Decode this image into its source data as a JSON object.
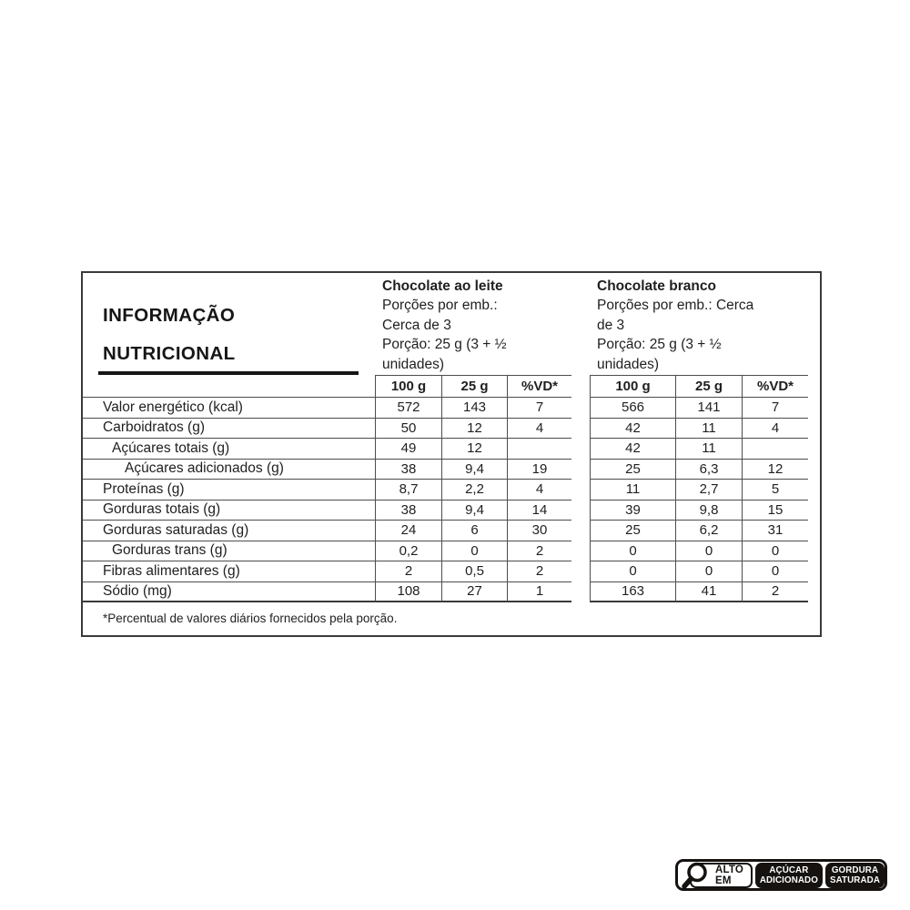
{
  "nutrition_table": {
    "title": "INFORMAÇÃO\nNUTRICIONAL",
    "footnote": "*Percentual de valores diários fornecidos pela porção.",
    "groups": [
      {
        "name": "Chocolate ao leite",
        "serving_info": "Porções por emb.:\nCerca de 3\nPorção: 25 g (3 + ½\nunidades)",
        "columns": [
          "100 g",
          "25 g",
          "%VD*"
        ]
      },
      {
        "name": "Chocolate branco",
        "serving_info": "Porções por emb.: Cerca\nde 3\nPorção: 25 g (3 + ½\nunidades)",
        "columns": [
          "100 g",
          "25 g",
          "%VD*"
        ]
      }
    ],
    "rows": [
      {
        "label": "Valor energético (kcal)",
        "indent": 0,
        "g1": [
          "572",
          "143",
          "7"
        ],
        "g2": [
          "566",
          "141",
          "7"
        ]
      },
      {
        "label": "Carboidratos (g)",
        "indent": 0,
        "g1": [
          "50",
          "12",
          "4"
        ],
        "g2": [
          "42",
          "11",
          "4"
        ]
      },
      {
        "label": "Açúcares totais (g)",
        "indent": 1,
        "g1": [
          "49",
          "12",
          ""
        ],
        "g2": [
          "42",
          "11",
          ""
        ]
      },
      {
        "label": "Açúcares adicionados (g)",
        "indent": 2,
        "g1": [
          "38",
          "9,4",
          "19"
        ],
        "g2": [
          "25",
          "6,3",
          "12"
        ]
      },
      {
        "label": "Proteínas (g)",
        "indent": 0,
        "g1": [
          "8,7",
          "2,2",
          "4"
        ],
        "g2": [
          "11",
          "2,7",
          "5"
        ]
      },
      {
        "label": "Gorduras totais (g)",
        "indent": 0,
        "g1": [
          "38",
          "9,4",
          "14"
        ],
        "g2": [
          "39",
          "9,8",
          "15"
        ]
      },
      {
        "label": "Gorduras saturadas (g)",
        "indent": 0,
        "g1": [
          "24",
          "6",
          "30"
        ],
        "g2": [
          "25",
          "6,2",
          "31"
        ]
      },
      {
        "label": "Gorduras trans (g)",
        "indent": 1,
        "g1": [
          "0,2",
          "0",
          "2"
        ],
        "g2": [
          "0",
          "0",
          "0"
        ]
      },
      {
        "label": "Fibras alimentares (g)",
        "indent": 0,
        "g1": [
          "2",
          "0,5",
          "2"
        ],
        "g2": [
          "0",
          "0",
          "0"
        ]
      },
      {
        "label": "Sódio (mg)",
        "indent": 0,
        "g1": [
          "108",
          "27",
          "1"
        ],
        "g2": [
          "163",
          "41",
          "2"
        ]
      }
    ]
  },
  "warning_badge": {
    "prefix": "ALTO EM",
    "tags": [
      "AÇÚCAR\nADICIONADO",
      "GORDURA\nSATURADA"
    ],
    "colors": {
      "badge_border": "#151210",
      "tag_bg": "#151210",
      "tag_text": "#ffffff"
    }
  }
}
